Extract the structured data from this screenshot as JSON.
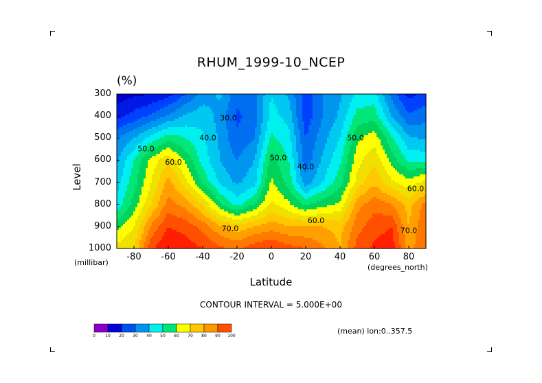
{
  "chart_data": {
    "type": "heatmap",
    "title": "RHUM_1999-10_NCEP",
    "units": "(%)",
    "xlabel": "Latitude",
    "ylabel": "Level",
    "x_unit": "(degrees_north)",
    "y_unit": "(millibar)",
    "xlim": [
      -90,
      90
    ],
    "ylim": [
      1000,
      300
    ],
    "x_ticks": [
      "-80",
      "-60",
      "-40",
      "-20",
      "0",
      "20",
      "40",
      "60",
      "80"
    ],
    "x_tick_values": [
      -80,
      -60,
      -40,
      -20,
      0,
      20,
      40,
      60,
      80
    ],
    "y_ticks": [
      "300",
      "400",
      "500",
      "600",
      "700",
      "800",
      "900",
      "1000"
    ],
    "y_tick_values": [
      300,
      400,
      500,
      600,
      700,
      800,
      900,
      1000
    ],
    "contour_interval_text": "CONTOUR INTERVAL = 5.000E+00",
    "mean_text": "(mean) lon:0..357.5",
    "contour_labels": [
      {
        "text": "30.0",
        "lat": -25,
        "lev": 420
      },
      {
        "text": "40.0",
        "lat": -37,
        "lev": 510
      },
      {
        "text": "50.0",
        "lat": -73,
        "lev": 560
      },
      {
        "text": "60.0",
        "lat": -57,
        "lev": 620
      },
      {
        "text": "50.0",
        "lat": 4,
        "lev": 600
      },
      {
        "text": "40.0",
        "lat": 20,
        "lev": 640
      },
      {
        "text": "50.0",
        "lat": 49,
        "lev": 510
      },
      {
        "text": "60.0",
        "lat": 26,
        "lev": 885
      },
      {
        "text": "70.0",
        "lat": -24,
        "lev": 920
      },
      {
        "text": "60.0",
        "lat": 84,
        "lev": 740
      },
      {
        "text": "70.0",
        "lat": 80,
        "lev": 930
      }
    ],
    "latitudes": [
      -90,
      -80,
      -70,
      -60,
      -50,
      -40,
      -30,
      -20,
      -10,
      0,
      10,
      20,
      30,
      40,
      50,
      60,
      70,
      80,
      90
    ],
    "levels": [
      300,
      400,
      500,
      600,
      700,
      800,
      900,
      1000
    ],
    "values": [
      [
        12,
        14,
        15,
        18,
        25,
        32,
        36,
        27,
        28,
        40,
        34,
        22,
        30,
        34,
        41,
        42,
        28,
        18,
        22
      ],
      [
        18,
        22,
        26,
        31,
        36,
        38,
        33,
        24,
        27,
        42,
        38,
        22,
        30,
        36,
        47,
        48,
        35,
        26,
        28
      ],
      [
        30,
        35,
        42,
        48,
        45,
        41,
        34,
        26,
        30,
        46,
        42,
        25,
        33,
        40,
        54,
        58,
        46,
        36,
        34
      ],
      [
        34,
        45,
        57,
        64,
        54,
        43,
        35,
        30,
        35,
        52,
        45,
        27,
        36,
        44,
        58,
        64,
        53,
        44,
        44
      ],
      [
        38,
        48,
        60,
        72,
        62,
        49,
        39,
        34,
        38,
        56,
        48,
        32,
        40,
        48,
        62,
        69,
        61,
        57,
        62
      ],
      [
        42,
        52,
        65,
        77,
        73,
        65,
        51,
        43,
        50,
        61,
        56,
        49,
        53,
        56,
        73,
        78,
        75,
        68,
        77
      ],
      [
        53,
        60,
        76,
        85,
        83,
        78,
        71,
        67,
        70,
        73,
        70,
        70,
        70,
        68,
        78,
        83,
        85,
        70,
        80
      ],
      [
        62,
        65,
        84,
        90,
        88,
        85,
        81,
        79,
        83,
        85,
        82,
        80,
        76,
        70,
        82,
        86,
        88,
        73,
        80
      ]
    ],
    "colorbar": {
      "colors": [
        "#8a00c8",
        "#0000d7",
        "#0050f0",
        "#0096f0",
        "#00f0f0",
        "#00e678",
        "#ffff00",
        "#ffc800",
        "#ff9600",
        "#ff5000",
        "#ff0000"
      ],
      "labels": [
        "0",
        "10",
        "20",
        "30",
        "40",
        "50",
        "60",
        "70",
        "80",
        "90",
        "100"
      ],
      "level_bounds": [
        0,
        10,
        20,
        30,
        40,
        50,
        60,
        70,
        80,
        90,
        100
      ]
    },
    "plot_bins": [
      15,
      20,
      25,
      30,
      35,
      40,
      45,
      50,
      55,
      60,
      65,
      70,
      75,
      80,
      85,
      90
    ],
    "plot_colors": [
      "#0000c8",
      "#0019e6",
      "#0040ff",
      "#0070f0",
      "#0096f0",
      "#00c8f0",
      "#00f0f0",
      "#00e678",
      "#00d25a",
      "#ffff00",
      "#f0e000",
      "#ffc800",
      "#ffa000",
      "#ff7800",
      "#ff5000",
      "#ff1e00",
      "#ff0000"
    ]
  }
}
